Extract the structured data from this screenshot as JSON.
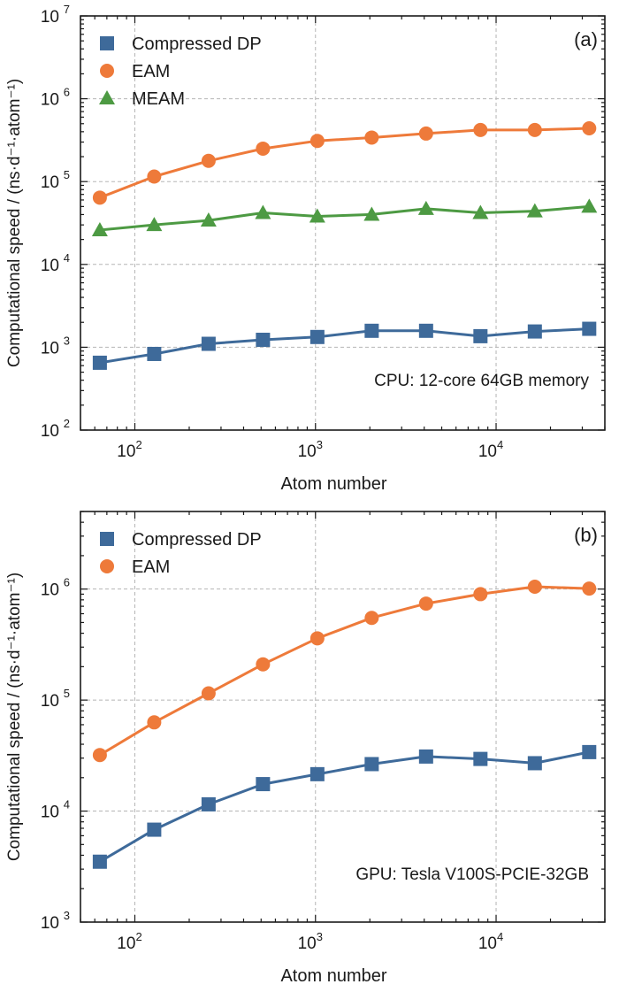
{
  "chart_data": [
    {
      "type": "line",
      "panel_label": "(a)",
      "annotation": "CPU: 12-core 64GB memory",
      "xlabel": "Atom number",
      "ylabel": "Computational speed / (ns·d⁻¹·atom⁻¹)",
      "xscale": "log",
      "yscale": "log",
      "xlim": [
        50,
        40000
      ],
      "ylim": [
        100,
        10000000
      ],
      "grid": true,
      "legend_position": "top-left",
      "x_tick_labels": [
        {
          "base": "10",
          "exp": "2",
          "value": 100
        },
        {
          "base": "10",
          "exp": "3",
          "value": 1000
        },
        {
          "base": "10",
          "exp": "4",
          "value": 10000
        }
      ],
      "y_tick_labels": [
        {
          "base": "10",
          "exp": "2",
          "value": 100
        },
        {
          "base": "10",
          "exp": "3",
          "value": 1000
        },
        {
          "base": "10",
          "exp": "4",
          "value": 10000
        },
        {
          "base": "10",
          "exp": "5",
          "value": 100000
        },
        {
          "base": "10",
          "exp": "6",
          "value": 1000000
        },
        {
          "base": "10",
          "exp": "7",
          "value": 10000000
        }
      ],
      "x": [
        64,
        128,
        256,
        512,
        1024,
        2048,
        4096,
        8192,
        16384,
        32768
      ],
      "series": [
        {
          "name": "Compressed DP",
          "color": "#3e6a9a",
          "marker": "square",
          "values": [
            650,
            830,
            1100,
            1230,
            1330,
            1580,
            1580,
            1360,
            1550,
            1670
          ]
        },
        {
          "name": "EAM",
          "color": "#ee7a3a",
          "marker": "circle",
          "values": [
            64000,
            115000,
            178000,
            250000,
            310000,
            340000,
            380000,
            420000,
            420000,
            440000
          ]
        },
        {
          "name": "MEAM",
          "color": "#4d9a43",
          "marker": "triangle",
          "values": [
            26000,
            30000,
            34000,
            42000,
            38000,
            40000,
            47000,
            42000,
            44000,
            50000
          ]
        }
      ]
    },
    {
      "type": "line",
      "panel_label": "(b)",
      "annotation": "GPU: Tesla V100S-PCIE-32GB",
      "xlabel": "Atom number",
      "ylabel": "Computational speed / (ns·d⁻¹·atom⁻¹)",
      "xscale": "log",
      "yscale": "log",
      "xlim": [
        50,
        40000
      ],
      "ylim": [
        1000,
        5000000
      ],
      "grid": true,
      "legend_position": "top-left",
      "x_tick_labels": [
        {
          "base": "10",
          "exp": "2",
          "value": 100
        },
        {
          "base": "10",
          "exp": "3",
          "value": 1000
        },
        {
          "base": "10",
          "exp": "4",
          "value": 10000
        }
      ],
      "y_tick_labels": [
        {
          "base": "10",
          "exp": "3",
          "value": 1000
        },
        {
          "base": "10",
          "exp": "4",
          "value": 10000
        },
        {
          "base": "10",
          "exp": "5",
          "value": 100000
        },
        {
          "base": "10",
          "exp": "6",
          "value": 1000000
        }
      ],
      "x": [
        64,
        128,
        256,
        512,
        1024,
        2048,
        4096,
        8192,
        16384,
        32768
      ],
      "series": [
        {
          "name": "Compressed DP",
          "color": "#3e6a9a",
          "marker": "square",
          "values": [
            3500,
            6800,
            11500,
            17500,
            21500,
            26500,
            31000,
            29500,
            27000,
            34000
          ]
        },
        {
          "name": "EAM",
          "color": "#ee7a3a",
          "marker": "circle",
          "values": [
            32000,
            63000,
            115000,
            210000,
            360000,
            550000,
            740000,
            900000,
            1050000,
            1010000
          ]
        }
      ]
    }
  ]
}
